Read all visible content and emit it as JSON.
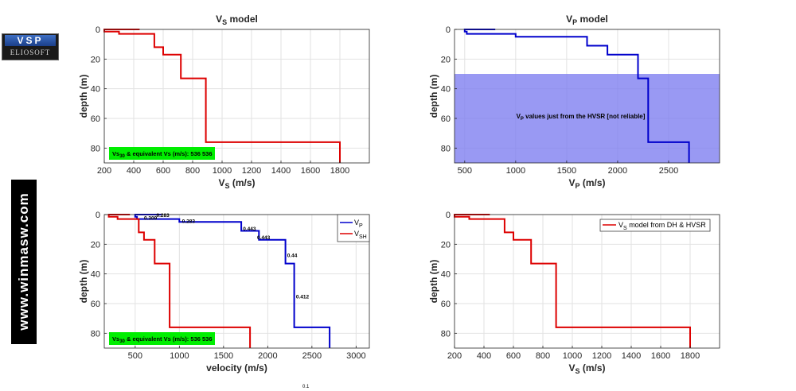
{
  "logo": {
    "brand": "VSP",
    "sub": "ELIOSOFT"
  },
  "side_banner": "www.winmasw.com",
  "footnote": "0.1",
  "colors": {
    "vs_line": "#dd0000",
    "vp_line": "#0000cc",
    "hvsr_shade": "#7c7cf0",
    "green_box": "#00ee00"
  },
  "chart_data": [
    {
      "type": "line",
      "title": "V_S model",
      "xlabel": "V_S (m/s)",
      "ylabel": "depth (m)",
      "xlim": [
        200,
        2000
      ],
      "ylim": [
        90,
        0
      ],
      "xticks": [
        200,
        400,
        600,
        800,
        1000,
        1200,
        1400,
        1600,
        1800
      ],
      "yticks": [
        0,
        20,
        40,
        60,
        80
      ],
      "grid": true,
      "series": [
        {
          "color": "#dd0000",
          "x": [
            440,
            200,
            200,
            300,
            300,
            540,
            540,
            600,
            600,
            720,
            720,
            890,
            890,
            1800,
            1800
          ],
          "y": [
            0,
            0,
            1.5,
            1.5,
            3,
            3,
            12,
            12,
            17,
            17,
            33,
            33,
            76,
            76,
            90
          ]
        }
      ],
      "annotations": [
        {
          "type": "box",
          "text": "Vs30 & equivalent Vs (m/s):  536  536",
          "color": "#00ee00"
        }
      ]
    },
    {
      "type": "line",
      "title": "V_P model",
      "xlabel": "V_P (m/s)",
      "ylabel": "depth (m)",
      "xlim": [
        400,
        3000
      ],
      "ylim": [
        90,
        0
      ],
      "xticks": [
        500,
        1000,
        1500,
        2000,
        2500
      ],
      "yticks": [
        0,
        20,
        40,
        60,
        80
      ],
      "grid": true,
      "series": [
        {
          "color": "#0000cc",
          "x": [
            800,
            500,
            500,
            520,
            520,
            1000,
            1000,
            1700,
            1700,
            1900,
            1900,
            2200,
            2200,
            2300,
            2300,
            2700,
            2700
          ],
          "y": [
            0,
            0,
            1.5,
            1.5,
            3,
            3,
            5,
            5,
            11,
            11,
            17,
            17,
            33,
            33,
            76,
            76,
            90
          ]
        }
      ],
      "shaded_region": {
        "y_from": 30,
        "y_to": 90,
        "color": "#7c7cf0"
      },
      "annotations": [
        {
          "type": "label",
          "text": "VP values just from the HVSR [not reliable]"
        }
      ]
    },
    {
      "type": "line",
      "xlabel": "velocity (m/s)",
      "ylabel": "depth (m)",
      "xlim": [
        150,
        3150
      ],
      "ylim": [
        90,
        0
      ],
      "xticks": [
        500,
        1000,
        1500,
        2000,
        2500,
        3000
      ],
      "yticks": [
        0,
        20,
        40,
        60,
        80
      ],
      "grid": true,
      "legend": "top-right",
      "series": [
        {
          "name": "V_P",
          "color": "#0000cc",
          "x": [
            800,
            500,
            500,
            520,
            520,
            1000,
            1000,
            1700,
            1700,
            1900,
            1900,
            2200,
            2200,
            2300,
            2300,
            2700,
            2700
          ],
          "y": [
            0,
            0,
            1.5,
            1.5,
            3,
            3,
            5,
            5,
            11,
            11,
            17,
            17,
            33,
            33,
            76,
            76,
            90
          ]
        },
        {
          "name": "V_SH",
          "color": "#dd0000",
          "x": [
            440,
            200,
            200,
            300,
            300,
            540,
            540,
            600,
            600,
            720,
            720,
            890,
            890,
            1800,
            1800
          ],
          "y": [
            0,
            0,
            1.5,
            1.5,
            3,
            3,
            12,
            12,
            17,
            17,
            33,
            33,
            76,
            76,
            90
          ]
        }
      ],
      "point_labels": [
        {
          "x": 740,
          "y": 0,
          "text": "0.283"
        },
        {
          "x": 600,
          "y": 2,
          "text": "0.309"
        },
        {
          "x": 1030,
          "y": 4,
          "text": "0.283"
        },
        {
          "x": 1720,
          "y": 9,
          "text": "0.443"
        },
        {
          "x": 1880,
          "y": 15,
          "text": "0.443"
        },
        {
          "x": 2220,
          "y": 27,
          "text": "0.44"
        },
        {
          "x": 2320,
          "y": 55,
          "text": "0.412"
        }
      ],
      "annotations": [
        {
          "type": "box",
          "text": "Vs30 & equivalent Vs (m/s):  536  536",
          "color": "#00ee00"
        }
      ]
    },
    {
      "type": "line",
      "xlabel": "V_S (m/s)",
      "ylabel": "depth (m)",
      "xlim": [
        200,
        2000
      ],
      "ylim": [
        90,
        0
      ],
      "xticks": [
        200,
        400,
        600,
        800,
        1000,
        1200,
        1400,
        1600,
        1800
      ],
      "yticks": [
        0,
        20,
        40,
        60,
        80
      ],
      "grid": true,
      "legend": "top-right",
      "series": [
        {
          "name": "V_S model from DH & HVSR",
          "color": "#dd0000",
          "x": [
            440,
            200,
            200,
            300,
            300,
            540,
            540,
            600,
            600,
            720,
            720,
            890,
            890,
            1800,
            1800
          ],
          "y": [
            0,
            0,
            1.5,
            1.5,
            3,
            3,
            12,
            12,
            17,
            17,
            33,
            33,
            76,
            76,
            90
          ]
        }
      ]
    }
  ]
}
